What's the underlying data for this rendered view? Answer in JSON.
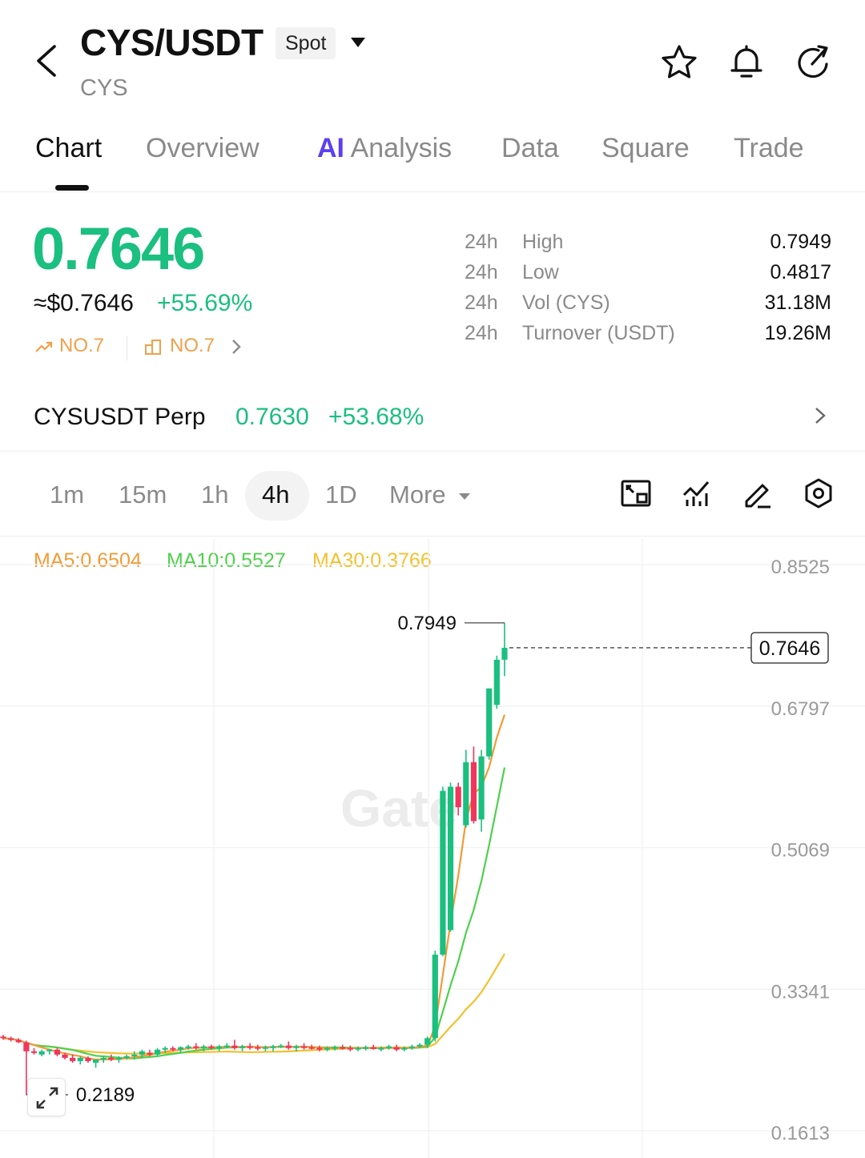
{
  "header": {
    "pair": "CYS/USDT",
    "market_type": "Spot",
    "base_asset": "CYS",
    "icons": [
      "back-chevron-icon",
      "star-icon",
      "bell-icon",
      "share-icon"
    ]
  },
  "tabs": [
    {
      "label": "Chart",
      "active": true
    },
    {
      "label": "Overview",
      "active": false
    },
    {
      "label": "Analysis",
      "ai_prefix": "AI",
      "active": false
    },
    {
      "label": "Data",
      "active": false
    },
    {
      "label": "Square",
      "active": false
    },
    {
      "label": "Trade",
      "active": false
    }
  ],
  "ticker": {
    "last_price": "0.7646",
    "usd_price": "≈$0.7646",
    "change_24h": "+55.69%",
    "rank_gainers": "NO.7",
    "rank_volume": "NO.7",
    "stats": [
      {
        "period": "24h",
        "label": "High",
        "value": "0.7949"
      },
      {
        "period": "24h",
        "label": "Low",
        "value": "0.4817"
      },
      {
        "period": "24h",
        "label": "Vol (CYS)",
        "value": "31.18M"
      },
      {
        "period": "24h",
        "label": "Turnover (USDT)",
        "value": "19.26M"
      }
    ]
  },
  "perp": {
    "name": "CYSUSDT Perp",
    "price": "0.7630",
    "change": "+53.68%"
  },
  "intervals": {
    "options": [
      "1m",
      "15m",
      "1h",
      "4h",
      "1D"
    ],
    "selected": "4h",
    "more_label": "More"
  },
  "chart_data": {
    "type": "candlestick",
    "interval": "4h",
    "ma": [
      {
        "name": "MA5",
        "label": "MA5:0.6504",
        "value": 0.6504,
        "color": "#f29b38"
      },
      {
        "name": "MA10",
        "label": "MA10:0.5527",
        "value": 0.5527,
        "color": "#4fd04c"
      },
      {
        "name": "MA30",
        "label": "MA30:0.3766",
        "value": 0.3766,
        "color": "#f2c12e"
      }
    ],
    "y_axis_ticks": [
      "0.8525",
      "0.6797",
      "0.5069",
      "0.3341",
      "0.1613"
    ],
    "ylim": [
      0.1613,
      0.8525
    ],
    "current_price_label": "0.7646",
    "high_marker": "0.7949",
    "low_marker": "0.2189",
    "watermark": "Gate",
    "up_color": "#1bbf7f",
    "down_color": "#f0365b",
    "candles": [
      {
        "o": 0.29,
        "h": 0.292,
        "l": 0.286,
        "c": 0.288
      },
      {
        "o": 0.288,
        "h": 0.29,
        "l": 0.284,
        "c": 0.286
      },
      {
        "o": 0.286,
        "h": 0.288,
        "l": 0.282,
        "c": 0.283
      },
      {
        "o": 0.283,
        "h": 0.285,
        "l": 0.219,
        "c": 0.272
      },
      {
        "o": 0.272,
        "h": 0.276,
        "l": 0.268,
        "c": 0.27
      },
      {
        "o": 0.268,
        "h": 0.274,
        "l": 0.266,
        "c": 0.272
      },
      {
        "o": 0.272,
        "h": 0.275,
        "l": 0.268,
        "c": 0.274
      },
      {
        "o": 0.274,
        "h": 0.276,
        "l": 0.266,
        "c": 0.268
      },
      {
        "o": 0.268,
        "h": 0.27,
        "l": 0.262,
        "c": 0.264
      },
      {
        "o": 0.264,
        "h": 0.268,
        "l": 0.258,
        "c": 0.26
      },
      {
        "o": 0.26,
        "h": 0.266,
        "l": 0.256,
        "c": 0.264
      },
      {
        "o": 0.264,
        "h": 0.266,
        "l": 0.258,
        "c": 0.26
      },
      {
        "o": 0.258,
        "h": 0.262,
        "l": 0.252,
        "c": 0.262
      },
      {
        "o": 0.262,
        "h": 0.266,
        "l": 0.258,
        "c": 0.264
      },
      {
        "o": 0.264,
        "h": 0.268,
        "l": 0.26,
        "c": 0.262
      },
      {
        "o": 0.262,
        "h": 0.266,
        "l": 0.258,
        "c": 0.264
      },
      {
        "o": 0.264,
        "h": 0.268,
        "l": 0.262,
        "c": 0.266
      },
      {
        "o": 0.266,
        "h": 0.272,
        "l": 0.262,
        "c": 0.268
      },
      {
        "o": 0.268,
        "h": 0.274,
        "l": 0.264,
        "c": 0.272
      },
      {
        "o": 0.27,
        "h": 0.274,
        "l": 0.266,
        "c": 0.268
      },
      {
        "o": 0.268,
        "h": 0.276,
        "l": 0.266,
        "c": 0.274
      },
      {
        "o": 0.274,
        "h": 0.278,
        "l": 0.27,
        "c": 0.276
      },
      {
        "o": 0.276,
        "h": 0.278,
        "l": 0.272,
        "c": 0.274
      },
      {
        "o": 0.274,
        "h": 0.278,
        "l": 0.27,
        "c": 0.277
      },
      {
        "o": 0.277,
        "h": 0.28,
        "l": 0.274,
        "c": 0.278
      },
      {
        "o": 0.278,
        "h": 0.282,
        "l": 0.274,
        "c": 0.276
      },
      {
        "o": 0.276,
        "h": 0.28,
        "l": 0.272,
        "c": 0.278
      },
      {
        "o": 0.278,
        "h": 0.28,
        "l": 0.274,
        "c": 0.276
      },
      {
        "o": 0.276,
        "h": 0.28,
        "l": 0.272,
        "c": 0.278
      },
      {
        "o": 0.278,
        "h": 0.282,
        "l": 0.276,
        "c": 0.279
      },
      {
        "o": 0.279,
        "h": 0.286,
        "l": 0.274,
        "c": 0.276
      },
      {
        "o": 0.276,
        "h": 0.28,
        "l": 0.272,
        "c": 0.278
      },
      {
        "o": 0.278,
        "h": 0.282,
        "l": 0.274,
        "c": 0.277
      },
      {
        "o": 0.277,
        "h": 0.28,
        "l": 0.273,
        "c": 0.276
      },
      {
        "o": 0.276,
        "h": 0.279,
        "l": 0.272,
        "c": 0.277
      },
      {
        "o": 0.276,
        "h": 0.28,
        "l": 0.272,
        "c": 0.278
      },
      {
        "o": 0.278,
        "h": 0.281,
        "l": 0.276,
        "c": 0.279
      },
      {
        "o": 0.279,
        "h": 0.284,
        "l": 0.274,
        "c": 0.276
      },
      {
        "o": 0.276,
        "h": 0.28,
        "l": 0.272,
        "c": 0.278
      },
      {
        "o": 0.278,
        "h": 0.282,
        "l": 0.274,
        "c": 0.277
      },
      {
        "o": 0.277,
        "h": 0.28,
        "l": 0.274,
        "c": 0.276
      },
      {
        "o": 0.276,
        "h": 0.279,
        "l": 0.272,
        "c": 0.275
      },
      {
        "o": 0.275,
        "h": 0.278,
        "l": 0.272,
        "c": 0.276
      },
      {
        "o": 0.276,
        "h": 0.279,
        "l": 0.273,
        "c": 0.277
      },
      {
        "o": 0.277,
        "h": 0.28,
        "l": 0.274,
        "c": 0.276
      },
      {
        "o": 0.276,
        "h": 0.279,
        "l": 0.272,
        "c": 0.275
      },
      {
        "o": 0.275,
        "h": 0.278,
        "l": 0.272,
        "c": 0.276
      },
      {
        "o": 0.276,
        "h": 0.279,
        "l": 0.273,
        "c": 0.277
      },
      {
        "o": 0.277,
        "h": 0.28,
        "l": 0.274,
        "c": 0.275
      },
      {
        "o": 0.275,
        "h": 0.278,
        "l": 0.272,
        "c": 0.276
      },
      {
        "o": 0.276,
        "h": 0.28,
        "l": 0.274,
        "c": 0.278
      },
      {
        "o": 0.277,
        "h": 0.28,
        "l": 0.272,
        "c": 0.274
      },
      {
        "o": 0.274,
        "h": 0.278,
        "l": 0.272,
        "c": 0.276
      },
      {
        "o": 0.276,
        "h": 0.28,
        "l": 0.274,
        "c": 0.278
      },
      {
        "o": 0.278,
        "h": 0.282,
        "l": 0.276,
        "c": 0.28
      },
      {
        "o": 0.28,
        "h": 0.29,
        "l": 0.276,
        "c": 0.288
      },
      {
        "o": 0.288,
        "h": 0.395,
        "l": 0.284,
        "c": 0.39
      },
      {
        "o": 0.39,
        "h": 0.595,
        "l": 0.388,
        "c": 0.59
      },
      {
        "o": 0.42,
        "h": 0.6,
        "l": 0.418,
        "c": 0.595
      },
      {
        "o": 0.595,
        "h": 0.6,
        "l": 0.56,
        "c": 0.57
      },
      {
        "o": 0.548,
        "h": 0.64,
        "l": 0.545,
        "c": 0.625
      },
      {
        "o": 0.625,
        "h": 0.644,
        "l": 0.55,
        "c": 0.553
      },
      {
        "o": 0.555,
        "h": 0.64,
        "l": 0.54,
        "c": 0.632
      },
      {
        "o": 0.632,
        "h": 0.715,
        "l": 0.628,
        "c": 0.715
      },
      {
        "o": 0.695,
        "h": 0.755,
        "l": 0.69,
        "c": 0.75
      },
      {
        "o": 0.75,
        "h": 0.795,
        "l": 0.73,
        "c": 0.7646
      }
    ]
  }
}
